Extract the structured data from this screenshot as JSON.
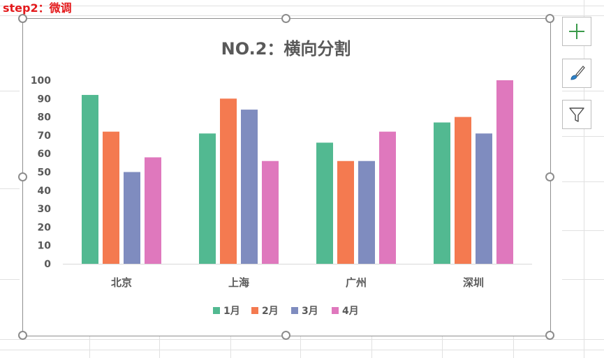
{
  "step_label": "step2：微调",
  "toolbar": {
    "add_icon": "plus-icon",
    "style_icon": "brush-icon",
    "filter_icon": "funnel-icon"
  },
  "colors": {
    "series": [
      "#52b991",
      "#f47a50",
      "#7f8cbf",
      "#df78bd"
    ],
    "axis_text": "#595959",
    "step_text": "#e41a1c"
  },
  "chart_data": {
    "type": "bar",
    "title": "NO.2：横向分割",
    "categories": [
      "北京",
      "上海",
      "广州",
      "深圳"
    ],
    "series": [
      {
        "name": "1月",
        "values": [
          92,
          71,
          66,
          77
        ]
      },
      {
        "name": "2月",
        "values": [
          72,
          90,
          56,
          80
        ]
      },
      {
        "name": "3月",
        "values": [
          50,
          84,
          56,
          71
        ]
      },
      {
        "name": "4月",
        "values": [
          58,
          56,
          72,
          100
        ]
      }
    ],
    "ylim": [
      0,
      100
    ],
    "yticks": [
      0,
      10,
      20,
      30,
      40,
      50,
      60,
      70,
      80,
      90,
      100
    ],
    "grid": false,
    "legend_position": "bottom"
  }
}
